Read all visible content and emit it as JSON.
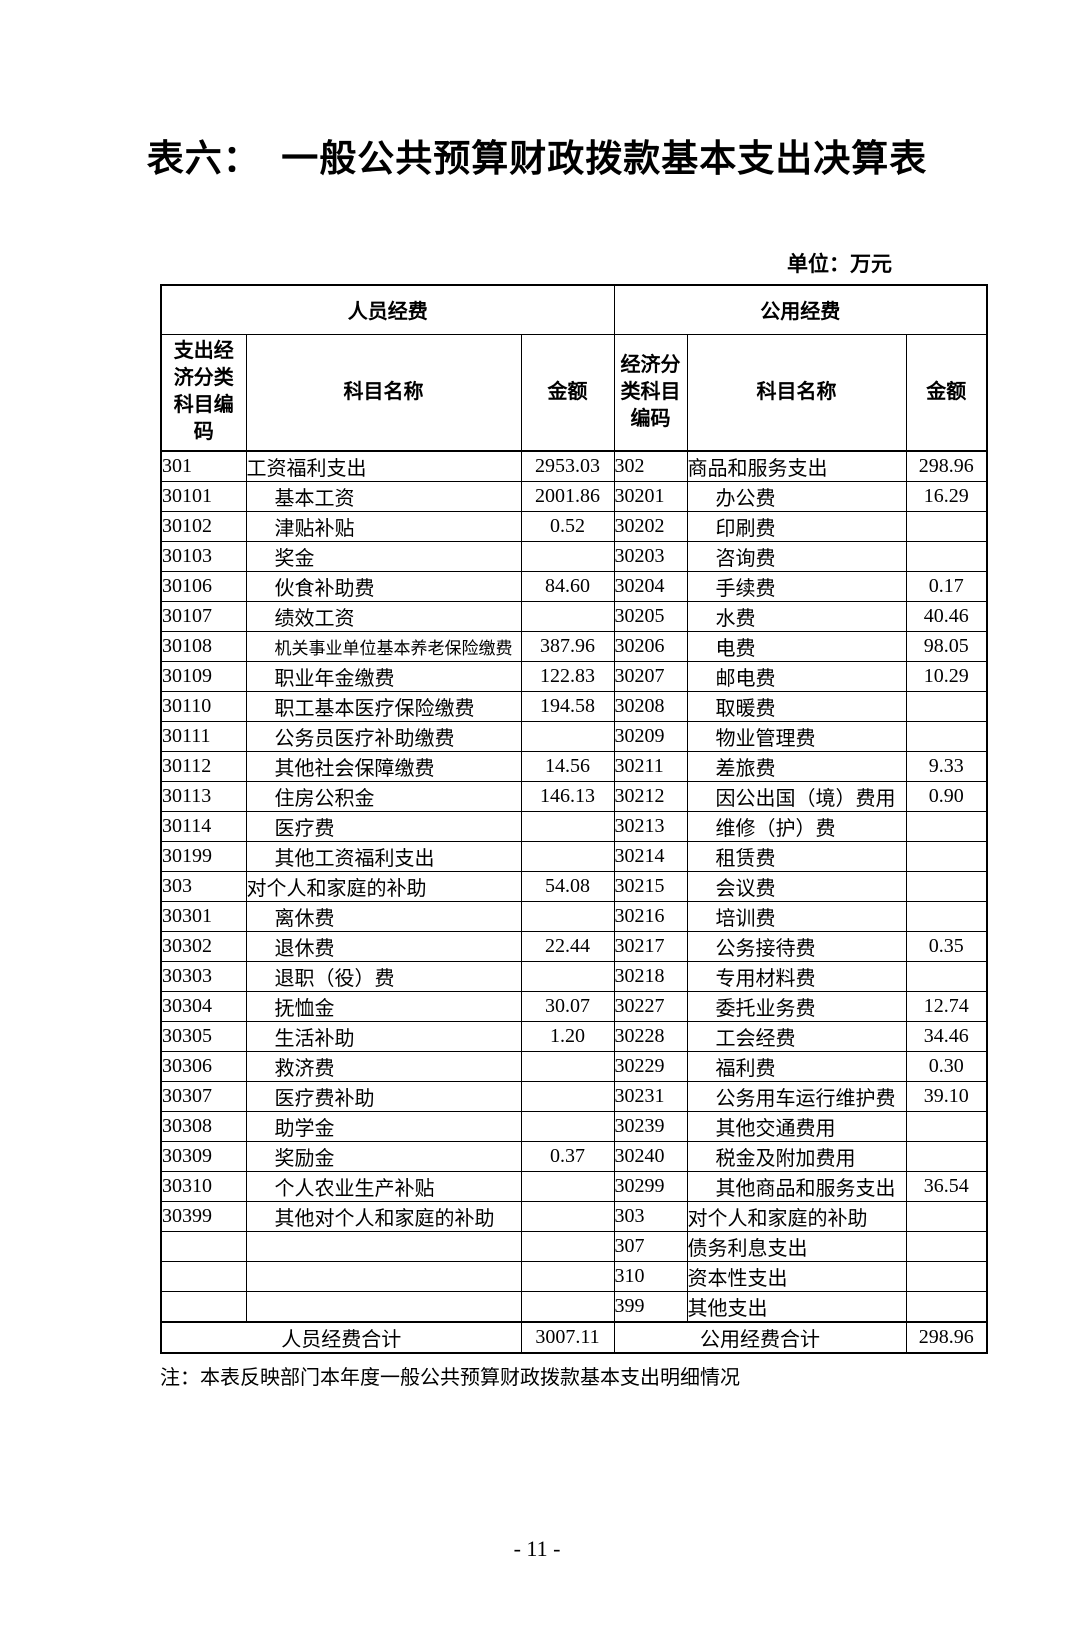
{
  "page": {
    "title": "表六：  一般公共预算财政拨款基本支出决算表",
    "unit_label": "单位：万元",
    "note": "注：本表反映部门本年度一般公共预算财政拨款基本支出明细情况",
    "page_number": "- 11 -"
  },
  "table": {
    "left_group_header": "人员经费",
    "right_group_header": "公用经费",
    "left_columns": [
      "支出经济分类科目编码",
      "科目名称",
      "金额"
    ],
    "right_columns": [
      "经济分类科目编码",
      "科目名称",
      "金额"
    ],
    "rows": [
      {
        "left": {
          "code": "301",
          "name": "工资福利支出",
          "value": "2953.03",
          "sec": true,
          "b": true
        },
        "right": {
          "code": "302",
          "name": "商品和服务支出",
          "value": "298.96",
          "sec": true,
          "b": true
        }
      },
      {
        "left": {
          "code": "30101",
          "name": "基本工资",
          "value": "2001.86"
        },
        "right": {
          "code": "30201",
          "name": "办公费",
          "value": "16.29"
        }
      },
      {
        "left": {
          "code": "30102",
          "name": "津贴补贴",
          "value": "0.52"
        },
        "right": {
          "code": "30202",
          "name": "印刷费",
          "value": ""
        }
      },
      {
        "left": {
          "code": "30103",
          "name": "奖金",
          "value": ""
        },
        "right": {
          "code": "30203",
          "name": "咨询费",
          "value": ""
        }
      },
      {
        "left": {
          "code": "30106",
          "name": "伙食补助费",
          "value": "84.60"
        },
        "right": {
          "code": "30204",
          "name": "手续费",
          "value": "0.17"
        }
      },
      {
        "left": {
          "code": "30107",
          "name": "绩效工资",
          "value": ""
        },
        "right": {
          "code": "30205",
          "name": "水费",
          "value": "40.46"
        }
      },
      {
        "left": {
          "code": "30108",
          "name": "机关事业单位基本养老保险缴费",
          "value": "387.96"
        },
        "right": {
          "code": "30206",
          "name": "电费",
          "value": "98.05"
        }
      },
      {
        "left": {
          "code": "30109",
          "name": "职业年金缴费",
          "value": "122.83"
        },
        "right": {
          "code": "30207",
          "name": "邮电费",
          "value": "10.29"
        }
      },
      {
        "left": {
          "code": "30110",
          "name": "职工基本医疗保险缴费",
          "value": "194.58"
        },
        "right": {
          "code": "30208",
          "name": "取暖费",
          "value": ""
        }
      },
      {
        "left": {
          "code": "30111",
          "name": "公务员医疗补助缴费",
          "value": ""
        },
        "right": {
          "code": "30209",
          "name": "物业管理费",
          "value": ""
        }
      },
      {
        "left": {
          "code": "30112",
          "name": "其他社会保障缴费",
          "value": "14.56"
        },
        "right": {
          "code": "30211",
          "name": "差旅费",
          "value": "9.33"
        }
      },
      {
        "left": {
          "code": "30113",
          "name": "住房公积金",
          "value": "146.13"
        },
        "right": {
          "code": "30212",
          "name": "因公出国（境）费用",
          "value": "0.90"
        }
      },
      {
        "left": {
          "code": "30114",
          "name": "医疗费",
          "value": ""
        },
        "right": {
          "code": "30213",
          "name": "维修（护）费",
          "value": ""
        }
      },
      {
        "left": {
          "code": "30199",
          "name": "其他工资福利支出",
          "value": ""
        },
        "right": {
          "code": "30214",
          "name": "租赁费",
          "value": ""
        }
      },
      {
        "left": {
          "code": "303",
          "name": "对个人和家庭的补助",
          "value": "54.08",
          "sec": true,
          "b": true
        },
        "right": {
          "code": "30215",
          "name": "会议费",
          "value": ""
        }
      },
      {
        "left": {
          "code": "30301",
          "name": "离休费",
          "value": ""
        },
        "right": {
          "code": "30216",
          "name": "培训费",
          "value": ""
        }
      },
      {
        "left": {
          "code": "30302",
          "name": "退休费",
          "value": "22.44",
          "vb": true
        },
        "right": {
          "code": "30217",
          "name": "公务接待费",
          "value": "0.35"
        }
      },
      {
        "left": {
          "code": "30303",
          "name": "退职（役）费",
          "value": ""
        },
        "right": {
          "code": "30218",
          "name": "专用材料费",
          "value": ""
        }
      },
      {
        "left": {
          "code": "30304",
          "name": "抚恤金",
          "value": "30.07",
          "vb": true
        },
        "right": {
          "code": "30227",
          "name": "委托业务费",
          "value": "12.74"
        }
      },
      {
        "left": {
          "code": "30305",
          "name": "生活补助",
          "value": "1.20",
          "vb": true
        },
        "right": {
          "code": "30228",
          "name": "工会经费",
          "value": "34.46"
        }
      },
      {
        "left": {
          "code": "30306",
          "name": "救济费",
          "value": ""
        },
        "right": {
          "code": "30229",
          "name": "福利费",
          "value": "0.30"
        }
      },
      {
        "left": {
          "code": "30307",
          "name": "医疗费补助",
          "value": ""
        },
        "right": {
          "code": "30231",
          "name": "公务用车运行维护费",
          "value": "39.10"
        }
      },
      {
        "left": {
          "code": "30308",
          "name": "助学金",
          "value": ""
        },
        "right": {
          "code": "30239",
          "name": "其他交通费用",
          "value": ""
        }
      },
      {
        "left": {
          "code": "30309",
          "name": "奖励金",
          "value": "0.37",
          "vb": true
        },
        "right": {
          "code": "30240",
          "name": "税金及附加费用",
          "value": ""
        }
      },
      {
        "left": {
          "code": "30310",
          "name": "个人农业生产补贴",
          "value": ""
        },
        "right": {
          "code": "30299",
          "name": "其他商品和服务支出",
          "value": "36.54"
        }
      },
      {
        "left": {
          "code": "30399",
          "name": "其他对个人和家庭的补助",
          "value": ""
        },
        "right": {
          "code": "303",
          "name": "对个人和家庭的补助",
          "value": "",
          "sec": true
        }
      },
      {
        "left": {
          "code": "",
          "name": "",
          "value": ""
        },
        "right": {
          "code": "307",
          "name": "债务利息支出",
          "value": "",
          "sec": true
        }
      },
      {
        "left": {
          "code": "",
          "name": "",
          "value": ""
        },
        "right": {
          "code": "310",
          "name": "资本性支出",
          "value": "",
          "sec": true
        }
      },
      {
        "left": {
          "code": "",
          "name": "",
          "value": ""
        },
        "right": {
          "code": "399",
          "name": "其他支出",
          "value": "",
          "sec": true
        }
      }
    ],
    "left_footer": {
      "label": "人员经费合计",
      "value": "3007.11"
    },
    "right_footer": {
      "label": "公用经费合计",
      "value": "298.96"
    }
  }
}
